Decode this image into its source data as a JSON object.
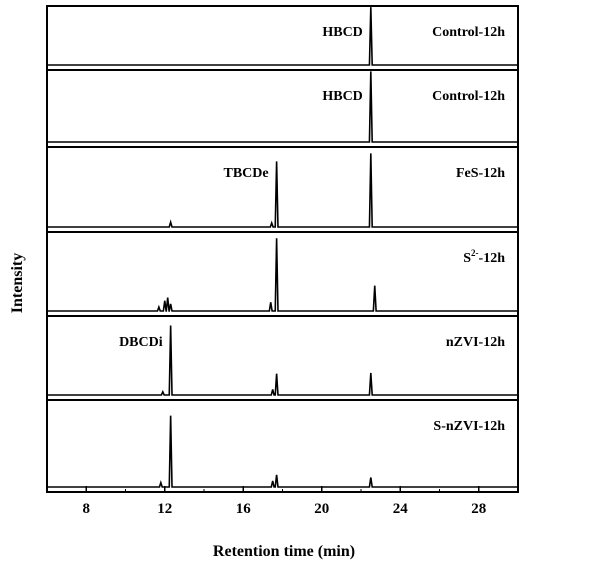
{
  "chart_data": {
    "type": "line",
    "xlabel": "Retention time (min)",
    "ylabel": "Intensity",
    "xlim": [
      6,
      30
    ],
    "x_ticks": [
      8,
      12,
      16,
      20,
      24,
      28
    ],
    "grid": false,
    "layout": "stacked panels",
    "panels": [
      {
        "name": "Control-12h",
        "peak_annotations": [
          {
            "text": "HBCD",
            "x": 22.5
          }
        ],
        "peaks": [
          {
            "x": 22.5,
            "height": 0.98
          }
        ]
      },
      {
        "name": "Control-12h",
        "peak_annotations": [
          {
            "text": "HBCD",
            "x": 22.5
          }
        ],
        "peaks": [
          {
            "x": 22.5,
            "height": 0.98
          }
        ]
      },
      {
        "name": "FeS-12h",
        "peak_annotations": [
          {
            "text": "TBCDe",
            "x": 17.7
          }
        ],
        "peaks": [
          {
            "x": 12.3,
            "height": 0.06
          },
          {
            "x": 17.45,
            "height": 0.05
          },
          {
            "x": 17.7,
            "height": 0.82
          },
          {
            "x": 22.5,
            "height": 0.92
          }
        ]
      },
      {
        "name": "S2−-12h",
        "name_parts": {
          "base": "S",
          "sup": "2-",
          "suffix": "-12h"
        },
        "peak_annotations": [],
        "peaks": [
          {
            "x": 11.7,
            "height": 0.05
          },
          {
            "x": 12.0,
            "height": 0.13
          },
          {
            "x": 12.15,
            "height": 0.17
          },
          {
            "x": 12.3,
            "height": 0.09
          },
          {
            "x": 17.4,
            "height": 0.11
          },
          {
            "x": 17.7,
            "height": 0.92
          },
          {
            "x": 22.7,
            "height": 0.32
          }
        ]
      },
      {
        "name": "nZVI-12h",
        "peak_annotations": [
          {
            "text": "DBCDi",
            "x": 12.3
          }
        ],
        "peaks": [
          {
            "x": 11.9,
            "height": 0.04
          },
          {
            "x": 12.3,
            "height": 0.88
          },
          {
            "x": 17.5,
            "height": 0.07
          },
          {
            "x": 17.7,
            "height": 0.27
          },
          {
            "x": 22.5,
            "height": 0.28
          }
        ]
      },
      {
        "name": "S-nZVI-12h",
        "peak_annotations": [],
        "peaks": [
          {
            "x": 11.8,
            "height": 0.05
          },
          {
            "x": 12.3,
            "height": 0.82
          },
          {
            "x": 17.5,
            "height": 0.07
          },
          {
            "x": 17.7,
            "height": 0.14
          },
          {
            "x": 22.5,
            "height": 0.11
          }
        ]
      }
    ]
  }
}
